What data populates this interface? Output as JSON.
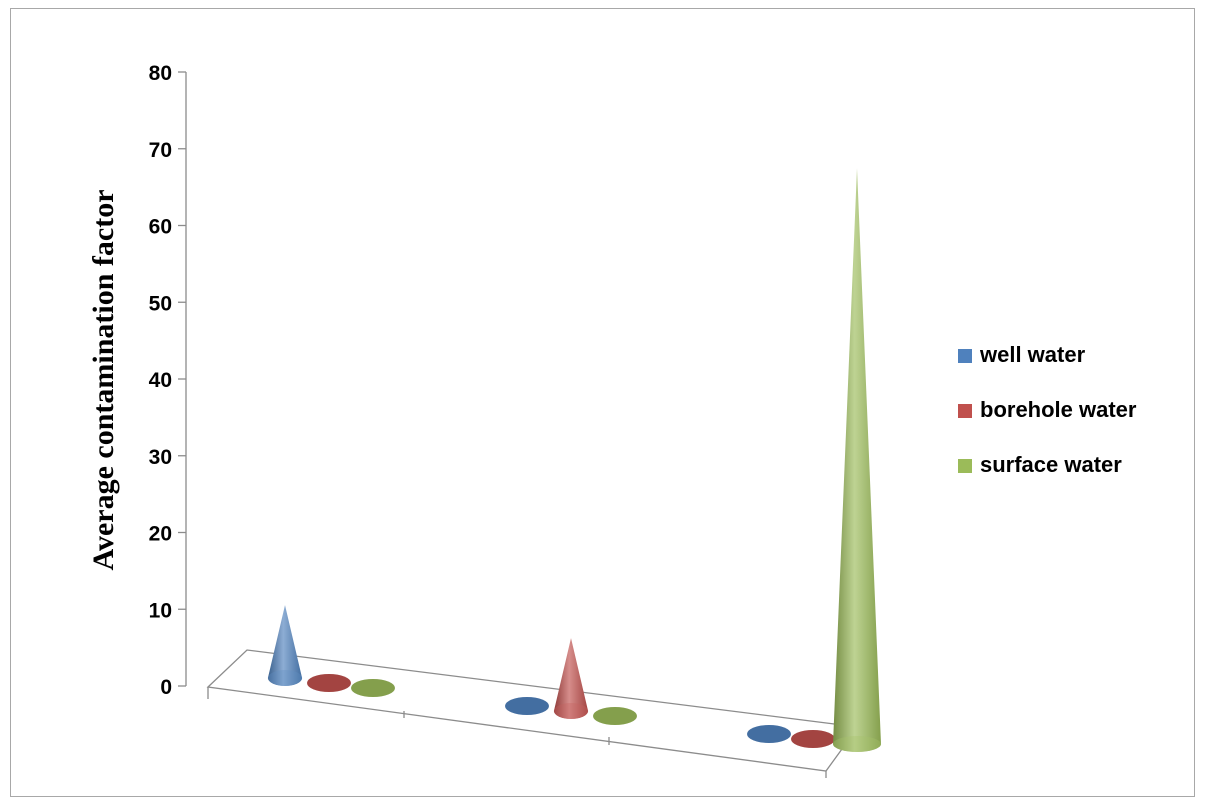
{
  "chart_data": {
    "type": "bar",
    "variant": "3d-cone",
    "ylabel": "Average contamination factor",
    "xlabel": "",
    "ylim": [
      0,
      80
    ],
    "y_ticks": [
      0,
      10,
      20,
      30,
      40,
      50,
      60,
      70,
      80
    ],
    "categories": [
      "",
      "",
      ""
    ],
    "series": [
      {
        "name": "well water",
        "color": "#4f81bd",
        "values": [
          9.5,
          0.2,
          0.2
        ]
      },
      {
        "name": "borehole water",
        "color": "#c0504d",
        "values": [
          0.2,
          9.5,
          0.2
        ]
      },
      {
        "name": "surface water",
        "color": "#9bbb59",
        "values": [
          0.2,
          0.2,
          75
        ]
      }
    ],
    "legend_position": "right",
    "grid": false
  }
}
